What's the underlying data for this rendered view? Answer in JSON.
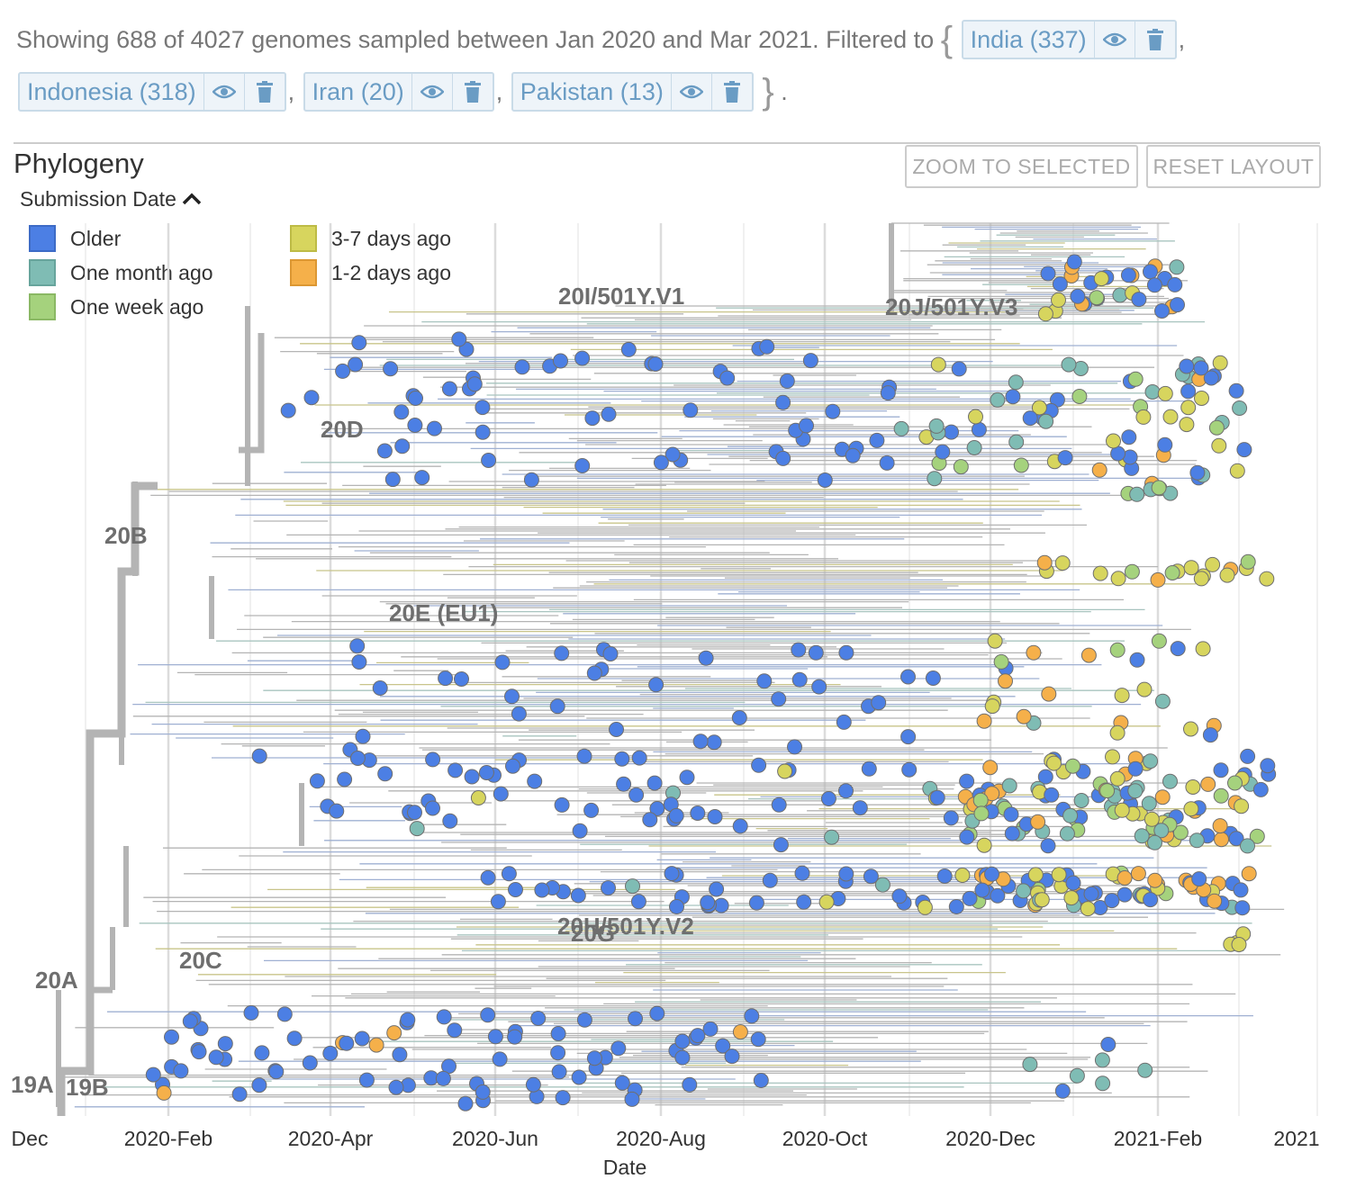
{
  "summary": {
    "prefix": "Showing 688 of 4027 genomes sampled between Jan 2020 and Mar 2021. Filtered to",
    "open_brace": "{",
    "close_brace": "}",
    "suffix": ".",
    "separator": ",",
    "filters": [
      {
        "label": "India (337)"
      },
      {
        "label": "Indonesia (318)"
      },
      {
        "label": "Iran (20)"
      },
      {
        "label": "Pakistan (13)"
      }
    ]
  },
  "panel": {
    "title": "Phylogeny",
    "zoom_button": "ZOOM TO SELECTED",
    "reset_button": "RESET LAYOUT",
    "color_by": "Submission Date"
  },
  "legend": [
    {
      "label": "Older",
      "color": "#4c7fe4"
    },
    {
      "label": "One month ago",
      "color": "#7fbcb4"
    },
    {
      "label": "One week ago",
      "color": "#a5d27d"
    },
    {
      "label": "3-7 days ago",
      "color": "#d7d55e"
    },
    {
      "label": "1-2 days ago",
      "color": "#f5b04a"
    }
  ],
  "clades": [
    {
      "label": "20I/501Y.V1"
    },
    {
      "label": "20J/501Y.V3"
    },
    {
      "label": "20D"
    },
    {
      "label": "20B"
    },
    {
      "label": "20E (EU1)"
    },
    {
      "label": "20H/501Y.V2"
    },
    {
      "label": "20G"
    },
    {
      "label": "20C"
    },
    {
      "label": "20A"
    },
    {
      "label": "19A"
    },
    {
      "label": "19B"
    }
  ],
  "axis": {
    "title": "Date",
    "ticks": [
      "Dec",
      "2020-Feb",
      "2020-Apr",
      "2020-Jun",
      "2020-Aug",
      "2020-Oct",
      "2020-Dec",
      "2021-Feb",
      "2021"
    ]
  },
  "colors": {
    "branch": "#b4b4b4",
    "chip_text": "#6a9cc4",
    "chip_border": "#c9dbe8"
  }
}
